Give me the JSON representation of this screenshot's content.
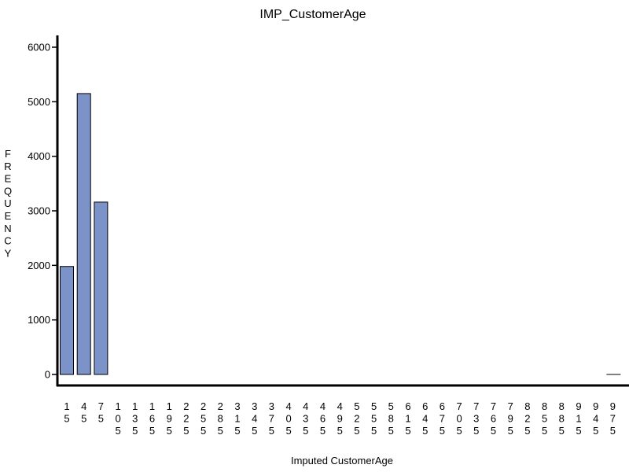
{
  "chart_data": {
    "type": "bar",
    "title": "IMP_CustomerAge",
    "xlabel": "Imputed CustomerAge",
    "ylabel": "FREQUENCY",
    "categories": [
      "15",
      "45",
      "75",
      "105",
      "135",
      "165",
      "195",
      "225",
      "255",
      "285",
      "315",
      "345",
      "375",
      "405",
      "435",
      "465",
      "495",
      "525",
      "555",
      "585",
      "615",
      "645",
      "675",
      "705",
      "735",
      "765",
      "795",
      "825",
      "855",
      "885",
      "915",
      "945",
      "975"
    ],
    "values": [
      1980,
      5150,
      3160,
      0,
      0,
      0,
      0,
      0,
      0,
      0,
      0,
      0,
      0,
      0,
      0,
      0,
      0,
      0,
      0,
      0,
      0,
      0,
      0,
      0,
      0,
      0,
      0,
      0,
      0,
      0,
      0,
      0,
      0
    ],
    "yticks": [
      0,
      1000,
      2000,
      3000,
      4000,
      5000,
      6000
    ],
    "ylim": [
      0,
      6000
    ],
    "grid": false,
    "legend": "none",
    "bar_color": "#7b93c8"
  }
}
